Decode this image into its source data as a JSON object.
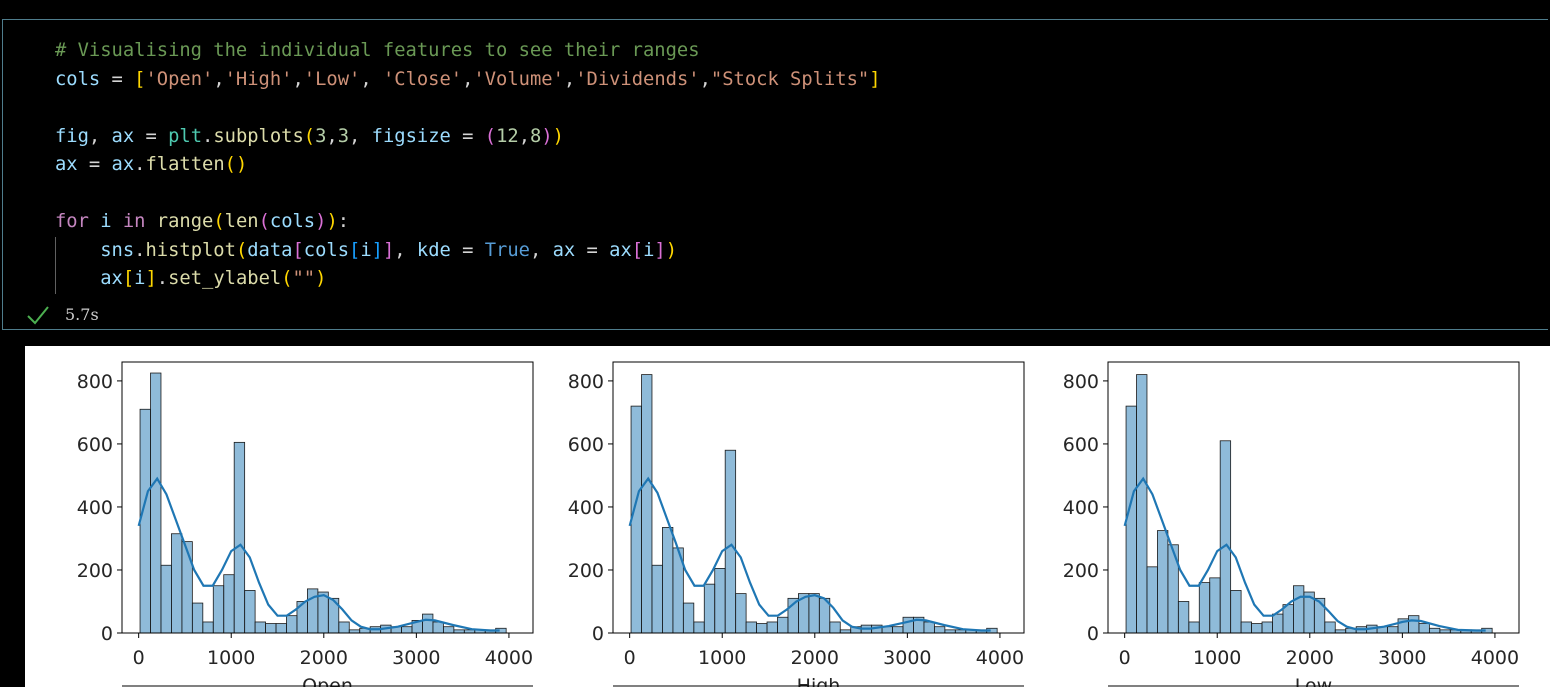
{
  "cell": {
    "lines": [
      {
        "tokens": [
          {
            "text": "# Visualising the individual features to see their ranges",
            "color": "#6a9955"
          }
        ]
      },
      {
        "tokens": [
          {
            "text": "cols",
            "color": "#9cdcfe"
          },
          {
            "text": " = ",
            "color": "#d4d4d4"
          },
          {
            "text": "[",
            "color": "#ffd700"
          },
          {
            "text": "'Open'",
            "color": "#ce9178"
          },
          {
            "text": ",",
            "color": "#d4d4d4"
          },
          {
            "text": "'High'",
            "color": "#ce9178"
          },
          {
            "text": ",",
            "color": "#d4d4d4"
          },
          {
            "text": "'Low'",
            "color": "#ce9178"
          },
          {
            "text": ", ",
            "color": "#d4d4d4"
          },
          {
            "text": "'Close'",
            "color": "#ce9178"
          },
          {
            "text": ",",
            "color": "#d4d4d4"
          },
          {
            "text": "'Volume'",
            "color": "#ce9178"
          },
          {
            "text": ",",
            "color": "#d4d4d4"
          },
          {
            "text": "'Dividends'",
            "color": "#ce9178"
          },
          {
            "text": ",",
            "color": "#d4d4d4"
          },
          {
            "text": "\"Stock Splits\"",
            "color": "#ce9178"
          },
          {
            "text": "]",
            "color": "#ffd700"
          }
        ]
      },
      {
        "tokens": []
      },
      {
        "tokens": [
          {
            "text": "fig",
            "color": "#9cdcfe"
          },
          {
            "text": ", ",
            "color": "#d4d4d4"
          },
          {
            "text": "ax",
            "color": "#9cdcfe"
          },
          {
            "text": " = ",
            "color": "#d4d4d4"
          },
          {
            "text": "plt",
            "color": "#4ec9b0"
          },
          {
            "text": ".",
            "color": "#d4d4d4"
          },
          {
            "text": "subplots",
            "color": "#dcdcaa"
          },
          {
            "text": "(",
            "color": "#ffd700"
          },
          {
            "text": "3",
            "color": "#b5cea8"
          },
          {
            "text": ",",
            "color": "#d4d4d4"
          },
          {
            "text": "3",
            "color": "#b5cea8"
          },
          {
            "text": ", ",
            "color": "#d4d4d4"
          },
          {
            "text": "figsize",
            "color": "#9cdcfe"
          },
          {
            "text": " = ",
            "color": "#d4d4d4"
          },
          {
            "text": "(",
            "color": "#da70d6"
          },
          {
            "text": "12",
            "color": "#b5cea8"
          },
          {
            "text": ",",
            "color": "#d4d4d4"
          },
          {
            "text": "8",
            "color": "#b5cea8"
          },
          {
            "text": ")",
            "color": "#da70d6"
          },
          {
            "text": ")",
            "color": "#ffd700"
          }
        ]
      },
      {
        "tokens": [
          {
            "text": "ax",
            "color": "#9cdcfe"
          },
          {
            "text": " = ",
            "color": "#d4d4d4"
          },
          {
            "text": "ax",
            "color": "#9cdcfe"
          },
          {
            "text": ".",
            "color": "#d4d4d4"
          },
          {
            "text": "flatten",
            "color": "#dcdcaa"
          },
          {
            "text": "()",
            "color": "#ffd700"
          }
        ]
      },
      {
        "tokens": []
      },
      {
        "tokens": [
          {
            "text": "for",
            "color": "#c586c0"
          },
          {
            "text": " ",
            "color": "#d4d4d4"
          },
          {
            "text": "i",
            "color": "#9cdcfe"
          },
          {
            "text": " ",
            "color": "#d4d4d4"
          },
          {
            "text": "in",
            "color": "#c586c0"
          },
          {
            "text": " ",
            "color": "#d4d4d4"
          },
          {
            "text": "range",
            "color": "#dcdcaa"
          },
          {
            "text": "(",
            "color": "#ffd700"
          },
          {
            "text": "len",
            "color": "#dcdcaa"
          },
          {
            "text": "(",
            "color": "#da70d6"
          },
          {
            "text": "cols",
            "color": "#9cdcfe"
          },
          {
            "text": ")",
            "color": "#da70d6"
          },
          {
            "text": ")",
            "color": "#ffd700"
          },
          {
            "text": ":",
            "color": "#d4d4d4"
          }
        ]
      },
      {
        "tokens": [
          {
            "text": "    ",
            "color": "#d4d4d4"
          },
          {
            "text": "sns",
            "color": "#9cdcfe"
          },
          {
            "text": ".",
            "color": "#d4d4d4"
          },
          {
            "text": "histplot",
            "color": "#dcdcaa"
          },
          {
            "text": "(",
            "color": "#ffd700"
          },
          {
            "text": "data",
            "color": "#9cdcfe"
          },
          {
            "text": "[",
            "color": "#da70d6"
          },
          {
            "text": "cols",
            "color": "#9cdcfe"
          },
          {
            "text": "[",
            "color": "#179fff"
          },
          {
            "text": "i",
            "color": "#9cdcfe"
          },
          {
            "text": "]",
            "color": "#179fff"
          },
          {
            "text": "]",
            "color": "#da70d6"
          },
          {
            "text": ", ",
            "color": "#d4d4d4"
          },
          {
            "text": "kde",
            "color": "#9cdcfe"
          },
          {
            "text": " = ",
            "color": "#d4d4d4"
          },
          {
            "text": "True",
            "color": "#569cd6"
          },
          {
            "text": ", ",
            "color": "#d4d4d4"
          },
          {
            "text": "ax",
            "color": "#9cdcfe"
          },
          {
            "text": " = ",
            "color": "#d4d4d4"
          },
          {
            "text": "ax",
            "color": "#9cdcfe"
          },
          {
            "text": "[",
            "color": "#da70d6"
          },
          {
            "text": "i",
            "color": "#9cdcfe"
          },
          {
            "text": "]",
            "color": "#da70d6"
          },
          {
            "text": ")",
            "color": "#ffd700"
          }
        ]
      },
      {
        "tokens": [
          {
            "text": "    ",
            "color": "#d4d4d4"
          },
          {
            "text": "ax",
            "color": "#9cdcfe"
          },
          {
            "text": "[",
            "color": "#ffd700"
          },
          {
            "text": "i",
            "color": "#9cdcfe"
          },
          {
            "text": "]",
            "color": "#ffd700"
          },
          {
            "text": ".",
            "color": "#d4d4d4"
          },
          {
            "text": "set_ylabel",
            "color": "#dcdcaa"
          },
          {
            "text": "(",
            "color": "#ffd700"
          },
          {
            "text": "\"\"",
            "color": "#ce9178"
          },
          {
            "text": ")",
            "color": "#ffd700"
          }
        ]
      }
    ],
    "status": "5.7s"
  },
  "chart_data": [
    {
      "type": "histogram",
      "xlabel": "Open",
      "color": "#1f77b4",
      "bins": [
        15,
        128,
        241,
        354,
        467,
        580,
        693,
        806,
        919,
        1032,
        1145,
        1258,
        1371,
        1484,
        1597,
        1710,
        1823,
        1936,
        2049,
        2162,
        2275,
        2388,
        2501,
        2614,
        2727,
        2840,
        2953,
        3066,
        3179,
        3292,
        3405,
        3518,
        3631,
        3744,
        3857,
        3970
      ],
      "counts": [
        710,
        825,
        215,
        315,
        290,
        95,
        35,
        150,
        185,
        605,
        135,
        35,
        30,
        30,
        55,
        100,
        140,
        130,
        110,
        35,
        10,
        15,
        20,
        25,
        20,
        20,
        40,
        60,
        35,
        20,
        10,
        10,
        10,
        10,
        15
      ],
      "kde_x": [
        0,
        100,
        200,
        300,
        400,
        500,
        600,
        700,
        800,
        900,
        1000,
        1100,
        1200,
        1300,
        1400,
        1500,
        1600,
        1700,
        1800,
        1900,
        2000,
        2100,
        2200,
        2300,
        2400,
        2500,
        2600,
        2800,
        3000,
        3100,
        3200,
        3400,
        3600,
        3800,
        3900
      ],
      "kde_y": [
        340,
        450,
        490,
        440,
        360,
        280,
        200,
        150,
        150,
        200,
        260,
        280,
        240,
        160,
        90,
        55,
        55,
        75,
        100,
        115,
        120,
        105,
        75,
        40,
        20,
        12,
        12,
        20,
        35,
        42,
        40,
        25,
        12,
        8,
        8
      ],
      "xlim": [
        -180,
        4260
      ],
      "ylim": [
        0,
        860
      ],
      "xticks": [
        0,
        1000,
        2000,
        3000,
        4000
      ],
      "yticks": [
        0,
        200,
        400,
        600,
        800
      ]
    },
    {
      "type": "histogram",
      "xlabel": "High",
      "color": "#1f77b4",
      "bins": [
        15,
        128,
        241,
        354,
        467,
        580,
        693,
        806,
        919,
        1032,
        1145,
        1258,
        1371,
        1484,
        1597,
        1710,
        1823,
        1936,
        2049,
        2162,
        2275,
        2388,
        2501,
        2614,
        2727,
        2840,
        2953,
        3066,
        3179,
        3292,
        3405,
        3518,
        3631,
        3744,
        3857,
        3970
      ],
      "counts": [
        720,
        820,
        215,
        335,
        270,
        95,
        35,
        155,
        205,
        580,
        125,
        35,
        30,
        35,
        50,
        110,
        125,
        125,
        110,
        35,
        10,
        20,
        25,
        25,
        20,
        20,
        50,
        50,
        35,
        20,
        10,
        10,
        10,
        10,
        15
      ],
      "kde_x": [
        0,
        100,
        200,
        300,
        400,
        500,
        600,
        700,
        800,
        900,
        1000,
        1100,
        1200,
        1300,
        1400,
        1500,
        1600,
        1700,
        1800,
        1900,
        2000,
        2100,
        2200,
        2300,
        2400,
        2500,
        2600,
        2800,
        3000,
        3100,
        3200,
        3400,
        3600,
        3800,
        3900
      ],
      "kde_y": [
        340,
        450,
        490,
        445,
        365,
        285,
        200,
        150,
        150,
        200,
        260,
        280,
        240,
        160,
        90,
        55,
        55,
        75,
        100,
        115,
        120,
        110,
        80,
        40,
        20,
        14,
        14,
        22,
        35,
        42,
        40,
        25,
        12,
        8,
        8
      ],
      "xlim": [
        -180,
        4260
      ],
      "ylim": [
        0,
        860
      ],
      "xticks": [
        0,
        1000,
        2000,
        3000,
        4000
      ],
      "yticks": [
        0,
        200,
        400,
        600,
        800
      ]
    },
    {
      "type": "histogram",
      "xlabel": "Low",
      "color": "#1f77b4",
      "bins": [
        15,
        128,
        241,
        354,
        467,
        580,
        693,
        806,
        919,
        1032,
        1145,
        1258,
        1371,
        1484,
        1597,
        1710,
        1823,
        1936,
        2049,
        2162,
        2275,
        2388,
        2501,
        2614,
        2727,
        2840,
        2953,
        3066,
        3179,
        3292,
        3405,
        3518,
        3631,
        3744,
        3857,
        3970
      ],
      "counts": [
        720,
        820,
        210,
        325,
        280,
        100,
        35,
        160,
        175,
        610,
        135,
        35,
        30,
        35,
        60,
        90,
        150,
        130,
        110,
        35,
        10,
        15,
        20,
        25,
        20,
        20,
        45,
        55,
        30,
        15,
        10,
        10,
        10,
        10,
        15
      ],
      "kde_x": [
        0,
        100,
        200,
        300,
        400,
        500,
        600,
        700,
        800,
        900,
        1000,
        1100,
        1200,
        1300,
        1400,
        1500,
        1600,
        1700,
        1800,
        1900,
        2000,
        2100,
        2200,
        2300,
        2400,
        2500,
        2600,
        2800,
        3000,
        3100,
        3200,
        3400,
        3600,
        3800,
        3900
      ],
      "kde_y": [
        340,
        450,
        490,
        440,
        360,
        280,
        200,
        150,
        150,
        200,
        260,
        280,
        240,
        160,
        90,
        55,
        55,
        75,
        100,
        115,
        115,
        100,
        70,
        38,
        20,
        12,
        12,
        20,
        35,
        40,
        38,
        22,
        10,
        8,
        8
      ],
      "xlim": [
        -180,
        4260
      ],
      "ylim": [
        0,
        860
      ],
      "xticks": [
        0,
        1000,
        2000,
        3000,
        4000
      ],
      "yticks": [
        0,
        200,
        400,
        600,
        800
      ]
    }
  ]
}
